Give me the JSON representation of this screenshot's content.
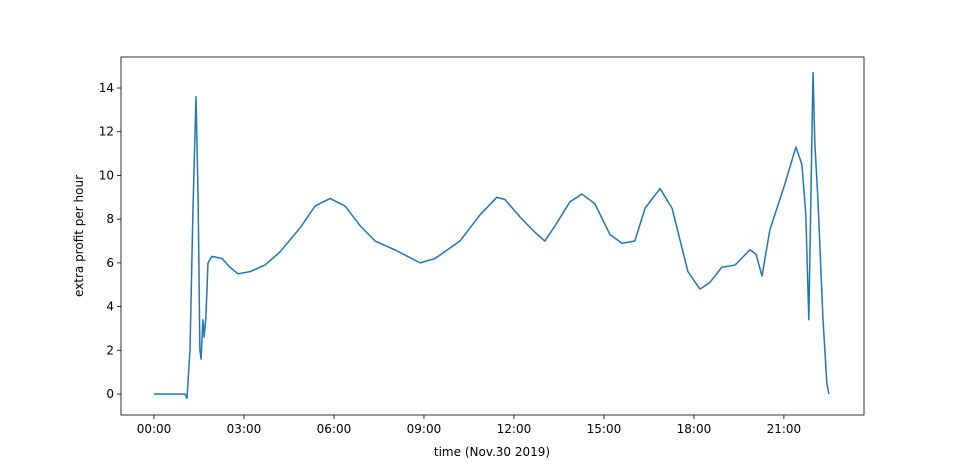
{
  "chart_data": {
    "type": "line",
    "x_label": "time (Nov.30 2019)",
    "y_label": "extra profit per hour",
    "x": [
      0,
      1.03,
      1.1,
      1.2,
      1.3,
      1.4,
      1.47,
      1.53,
      1.57,
      1.63,
      1.67,
      1.73,
      1.8,
      1.93,
      2.27,
      2.53,
      2.8,
      3.2,
      3.7,
      4.2,
      4.87,
      5.37,
      5.87,
      6.37,
      6.87,
      7.37,
      8.03,
      8.87,
      9.37,
      10.2,
      10.87,
      11.43,
      11.7,
      12.2,
      12.7,
      13.03,
      13.37,
      13.87,
      14.27,
      14.7,
      15.2,
      15.6,
      16.03,
      16.37,
      16.87,
      17.27,
      17.8,
      18.2,
      18.53,
      18.93,
      19.37,
      19.87,
      20.07,
      20.27,
      20.53,
      21.03,
      21.4,
      21.6,
      21.73,
      21.83,
      21.97,
      22.03,
      22.13,
      22.3,
      22.43,
      22.5
    ],
    "series": [
      {
        "color": "#1f77b4",
        "values": [
          0,
          0,
          -0.2,
          2,
          8.5,
          13.6,
          9,
          2,
          1.6,
          3.4,
          2.6,
          3.5,
          6,
          6.3,
          6.2,
          5.8,
          5.5,
          5.6,
          5.9,
          6.5,
          7.6,
          8.6,
          8.95,
          8.6,
          7.7,
          7.0,
          6.6,
          6.0,
          6.2,
          7.0,
          8.2,
          9.0,
          8.9,
          8.1,
          7.4,
          7.0,
          7.7,
          8.8,
          9.15,
          8.7,
          7.3,
          6.9,
          7.0,
          8.5,
          9.4,
          8.5,
          5.6,
          4.8,
          5.1,
          5.8,
          5.9,
          6.6,
          6.4,
          5.4,
          7.5,
          9.6,
          11.3,
          10.5,
          8.2,
          3.4,
          14.7,
          11.5,
          9,
          3.5,
          0.5,
          0
        ]
      }
    ],
    "xlim": [
      -1.1,
      23.67
    ],
    "xticks": [
      {
        "value": 0,
        "label": "00:00"
      },
      {
        "value": 3,
        "label": "03:00"
      },
      {
        "value": 6,
        "label": "06:00"
      },
      {
        "value": 9,
        "label": "09:00"
      },
      {
        "value": 12,
        "label": "12:00"
      },
      {
        "value": 15,
        "label": "15:00"
      },
      {
        "value": 18,
        "label": "18:00"
      },
      {
        "value": 21,
        "label": "21:00"
      }
    ],
    "ylim": [
      -0.96,
      15.42
    ],
    "yticks": [
      0,
      2,
      4,
      6,
      8,
      10,
      12,
      14
    ],
    "grid": false
  }
}
